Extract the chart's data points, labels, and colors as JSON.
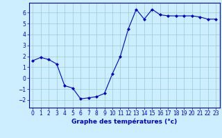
{
  "x": [
    0,
    1,
    2,
    3,
    4,
    5,
    6,
    7,
    8,
    9,
    10,
    11,
    12,
    13,
    14,
    15,
    16,
    17,
    18,
    19,
    20,
    21,
    22,
    23
  ],
  "y": [
    1.6,
    1.9,
    1.7,
    1.3,
    -0.7,
    -0.9,
    -1.9,
    -1.8,
    -1.7,
    -1.4,
    0.4,
    2.0,
    4.5,
    6.3,
    5.4,
    6.3,
    5.8,
    5.7,
    5.7,
    5.7,
    5.7,
    5.6,
    5.4,
    5.4
  ],
  "line_color": "#0000cc",
  "marker": "D",
  "marker_size": 2.0,
  "linewidth": 0.8,
  "background_color": "#cceeff",
  "grid_color": "#99cccc",
  "xlabel": "Graphe des températures (°c)",
  "xlabel_color": "#0000cc",
  "xlabel_fontsize": 6.5,
  "tick_color": "#0000cc",
  "tick_fontsize": 5.5,
  "xlim": [
    -0.5,
    23.5
  ],
  "ylim": [
    -2.7,
    6.9
  ],
  "yticks": [
    -2,
    -1,
    0,
    1,
    2,
    3,
    4,
    5,
    6
  ],
  "xticks": [
    0,
    1,
    2,
    3,
    4,
    5,
    6,
    7,
    8,
    9,
    10,
    11,
    12,
    13,
    14,
    15,
    16,
    17,
    18,
    19,
    20,
    21,
    22,
    23
  ],
  "spine_color": "#0000cc",
  "axis_border_color": "#0000aa"
}
